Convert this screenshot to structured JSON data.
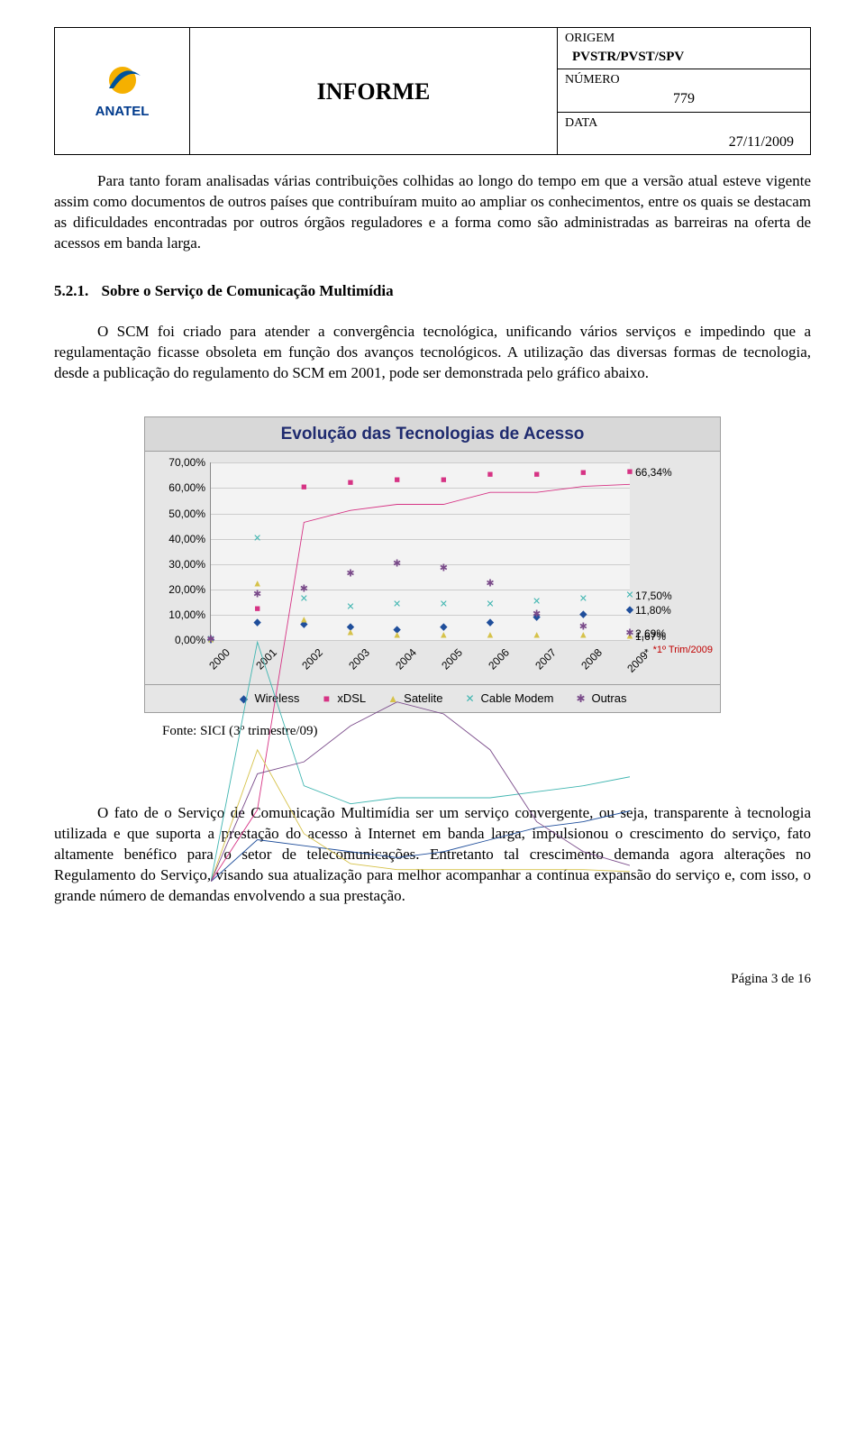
{
  "header": {
    "doc_title": "INFORME",
    "logo_text": "ANATEL",
    "origem_label": "ORIGEM",
    "origem_value": "PVSTR/PVST/SPV",
    "numero_label": "NÚMERO",
    "numero_value": "779",
    "data_label": "DATA",
    "data_value": "27/11/2009"
  },
  "paragraphs": {
    "p1": "Para tanto foram analisadas várias contribuições colhidas ao longo do tempo em que a versão atual esteve vigente assim como documentos de outros países que contribuíram muito ao ampliar os conhecimentos, entre os quais se destacam as dificuldades encontradas por outros órgãos reguladores e a forma como são administradas as barreiras na oferta de acessos em banda larga.",
    "p2": "O SCM foi criado para atender a convergência tecnológica, unificando vários serviços e impedindo que a regulamentação ficasse obsoleta em função dos avanços tecnológicos. A utilização das diversas formas de tecnologia, desde a publicação do regulamento do SCM em 2001, pode ser demonstrada pelo gráfico abaixo.",
    "p3": "O fato de o Serviço de Comunicação Multimídia ser um serviço convergente, ou seja, transparente à tecnologia utilizada e que suporta a prestação do acesso à Internet em banda larga, impulsionou o crescimento do serviço, fato altamente benéfico para o setor de telecomunicações. Entretanto tal crescimento demanda agora alterações no Regulamento do Serviço, visando sua atualização para melhor acompanhar a contínua expansão do serviço e, com isso, o grande número de demandas envolvendo a sua prestação."
  },
  "section": {
    "number": "5.2.1.",
    "title": "Sobre o Serviço de Comunicação Multimídia"
  },
  "chart": {
    "title": "Evolução das Tecnologias de Acesso",
    "type": "line",
    "background_color": "#e6e6e6",
    "plot_background": "#f3f3f3",
    "grid_color": "#cccccc",
    "title_color": "#1f2b6f",
    "title_fontsize": 19,
    "label_fontsize": 12,
    "x_labels": [
      "2000",
      "2001",
      "2002",
      "2003",
      "2004",
      "2005",
      "2006",
      "2007",
      "2008",
      "2009*"
    ],
    "y_labels": [
      "0,00%",
      "10,00%",
      "20,00%",
      "30,00%",
      "40,00%",
      "50,00%",
      "60,00%",
      "70,00%"
    ],
    "ylim": [
      0,
      70
    ],
    "series": [
      {
        "name": "Wireless",
        "color": "#1f4e9b",
        "marker": "diamond",
        "values": [
          0,
          7,
          6,
          5,
          4,
          5,
          7,
          9,
          10,
          11.8
        ],
        "end_label": "11,80%"
      },
      {
        "name": "xDSL",
        "color": "#d63384",
        "marker": "square",
        "values": [
          0,
          12,
          60,
          62,
          63,
          63,
          65,
          65,
          66,
          66.34
        ],
        "end_label": "66,34%"
      },
      {
        "name": "Satelite",
        "color": "#d6c24a",
        "marker": "triangle",
        "values": [
          0,
          22,
          8,
          3,
          2,
          2,
          2,
          2,
          2,
          1.67
        ],
        "end_label": "1,67%"
      },
      {
        "name": "Cable Modem",
        "color": "#3fb5b0",
        "marker": "x",
        "values": [
          0,
          40,
          16,
          13,
          14,
          14,
          14,
          15,
          16,
          17.5
        ],
        "end_label": "17,50%"
      },
      {
        "name": "Outras",
        "color": "#7a4b8a",
        "marker": "asterisk",
        "values": [
          0,
          18,
          20,
          26,
          30,
          28,
          22,
          10,
          5,
          2.69
        ],
        "end_label": "2,69%"
      }
    ],
    "footnote": "*1º Trim/2009",
    "footnote_color": "#c00000",
    "source": "Fonte: SICI (3º trimestre/09)"
  },
  "footer": {
    "page_label": "Página 3 de 16"
  }
}
